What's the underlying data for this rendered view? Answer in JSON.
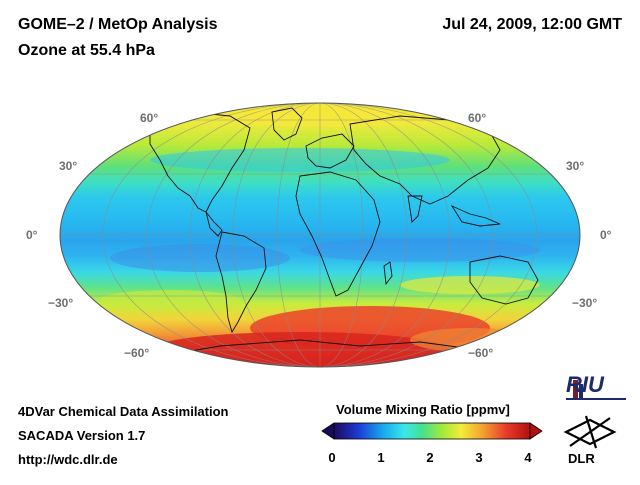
{
  "header": {
    "title_line1": "GOME–2 / MetOp Analysis",
    "title_line2": "Ozone at 55.4 hPa",
    "datetime": "Jul 24, 2009, 12:00 GMT"
  },
  "map": {
    "projection": "Mollweide",
    "lat_labels_left": [
      "60°",
      "30°",
      "0°",
      "−30°",
      "−60°"
    ],
    "lat_labels_right": [
      "60°",
      "30°",
      "0°",
      "−30°",
      "−60°"
    ]
  },
  "colorbar": {
    "title": "Volume Mixing Ratio [ppmv]",
    "ticks": [
      "0",
      "1",
      "2",
      "3",
      "4"
    ],
    "colors": [
      "#1b0a5a",
      "#1d38d0",
      "#19a8ef",
      "#38e8ea",
      "#46e08e",
      "#9eea3c",
      "#f2ec3a",
      "#f4a030",
      "#e83a2a",
      "#b20f0f"
    ]
  },
  "footer": {
    "line1": "4DVar Chemical Data Assimilation",
    "line2": "SACADA Version 1.7",
    "line3": "http://wdc.dlr.de"
  },
  "logos": {
    "riu": "RIU",
    "dlr": "DLR"
  }
}
